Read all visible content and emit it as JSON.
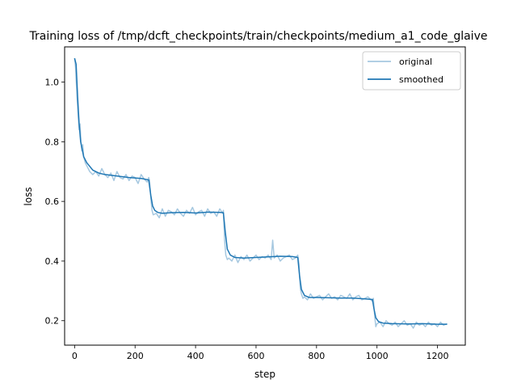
{
  "chart_data": {
    "type": "line",
    "title": "Training loss of /tmp/dcft_checkpoints/train/checkpoints/medium_a1_code_glaive",
    "xlabel": "step",
    "ylabel": "loss",
    "xlim": [
      -33,
      1292
    ],
    "ylim": [
      0.118,
      1.118
    ],
    "xticks": [
      0,
      200,
      400,
      600,
      800,
      1000,
      1200
    ],
    "xtick_labels": [
      "0",
      "200",
      "400",
      "600",
      "800",
      "1000",
      "1200"
    ],
    "yticks": [
      0.2,
      0.4,
      0.6,
      0.8,
      1.0
    ],
    "ytick_labels": [
      "0.2",
      "0.4",
      "0.6",
      "0.8",
      "1.0"
    ],
    "grid": false,
    "legend_position": "top-right",
    "colors": {
      "original": "#a6c8e0",
      "smoothed": "#1f77b4"
    },
    "series": [
      {
        "name": "original",
        "x": [
          0,
          3,
          6,
          9,
          12,
          15,
          18,
          21,
          24,
          27,
          30,
          35,
          40,
          45,
          50,
          60,
          70,
          80,
          90,
          100,
          110,
          120,
          130,
          140,
          150,
          160,
          170,
          180,
          190,
          200,
          210,
          220,
          230,
          240,
          245,
          248,
          252,
          256,
          260,
          270,
          280,
          290,
          300,
          310,
          320,
          330,
          340,
          350,
          360,
          370,
          380,
          390,
          400,
          410,
          420,
          430,
          440,
          450,
          460,
          470,
          480,
          490,
          492,
          496,
          500,
          505,
          510,
          520,
          530,
          540,
          550,
          560,
          570,
          580,
          590,
          600,
          610,
          620,
          630,
          640,
          650,
          655,
          660,
          670,
          680,
          690,
          700,
          710,
          720,
          730,
          738,
          742,
          746,
          750,
          755,
          760,
          770,
          780,
          790,
          800,
          810,
          820,
          830,
          840,
          850,
          860,
          870,
          880,
          890,
          900,
          910,
          920,
          930,
          940,
          950,
          960,
          970,
          980,
          985,
          988,
          992,
          996,
          1000,
          1010,
          1020,
          1030,
          1040,
          1050,
          1060,
          1070,
          1080,
          1090,
          1100,
          1110,
          1120,
          1130,
          1140,
          1150,
          1160,
          1170,
          1180,
          1190,
          1200,
          1210,
          1220,
          1232
        ],
        "y": [
          1.08,
          1.05,
          0.99,
          0.93,
          0.88,
          0.84,
          0.86,
          0.8,
          0.77,
          0.79,
          0.75,
          0.73,
          0.72,
          0.71,
          0.7,
          0.69,
          0.7,
          0.685,
          0.71,
          0.69,
          0.68,
          0.695,
          0.67,
          0.7,
          0.68,
          0.675,
          0.69,
          0.67,
          0.685,
          0.68,
          0.66,
          0.69,
          0.675,
          0.665,
          0.68,
          0.67,
          0.61,
          0.57,
          0.555,
          0.56,
          0.545,
          0.575,
          0.55,
          0.57,
          0.565,
          0.555,
          0.575,
          0.56,
          0.55,
          0.57,
          0.56,
          0.58,
          0.555,
          0.565,
          0.57,
          0.55,
          0.575,
          0.56,
          0.565,
          0.55,
          0.575,
          0.56,
          0.57,
          0.47,
          0.42,
          0.405,
          0.41,
          0.4,
          0.42,
          0.395,
          0.415,
          0.405,
          0.42,
          0.4,
          0.41,
          0.42,
          0.405,
          0.415,
          0.41,
          0.42,
          0.405,
          0.47,
          0.41,
          0.42,
          0.4,
          0.41,
          0.415,
          0.42,
          0.405,
          0.41,
          0.42,
          0.39,
          0.31,
          0.29,
          0.275,
          0.28,
          0.27,
          0.29,
          0.275,
          0.28,
          0.285,
          0.27,
          0.28,
          0.29,
          0.275,
          0.28,
          0.27,
          0.285,
          0.28,
          0.275,
          0.29,
          0.27,
          0.28,
          0.285,
          0.27,
          0.275,
          0.28,
          0.27,
          0.265,
          0.275,
          0.22,
          0.18,
          0.19,
          0.195,
          0.18,
          0.2,
          0.19,
          0.185,
          0.195,
          0.18,
          0.19,
          0.2,
          0.185,
          0.19,
          0.175,
          0.195,
          0.185,
          0.19,
          0.18,
          0.195,
          0.185,
          0.19,
          0.18,
          0.195,
          0.185,
          0.19
        ]
      },
      {
        "name": "smoothed",
        "x": [
          0,
          5,
          10,
          15,
          20,
          30,
          40,
          60,
          80,
          100,
          140,
          180,
          220,
          245,
          252,
          258,
          265,
          275,
          290,
          320,
          360,
          400,
          440,
          480,
          492,
          498,
          505,
          515,
          530,
          560,
          600,
          640,
          680,
          720,
          738,
          744,
          750,
          760,
          775,
          800,
          840,
          880,
          920,
          960,
          985,
          990,
          996,
          1005,
          1020,
          1050,
          1100,
          1150,
          1200,
          1232
        ],
        "y": [
          1.08,
          1.06,
          0.95,
          0.86,
          0.8,
          0.75,
          0.73,
          0.705,
          0.695,
          0.69,
          0.685,
          0.68,
          0.677,
          0.672,
          0.62,
          0.585,
          0.57,
          0.563,
          0.56,
          0.562,
          0.563,
          0.561,
          0.564,
          0.563,
          0.562,
          0.5,
          0.44,
          0.42,
          0.412,
          0.41,
          0.412,
          0.414,
          0.416,
          0.415,
          0.412,
          0.35,
          0.305,
          0.285,
          0.278,
          0.278,
          0.277,
          0.276,
          0.276,
          0.273,
          0.271,
          0.24,
          0.21,
          0.197,
          0.192,
          0.19,
          0.189,
          0.19,
          0.188,
          0.188
        ]
      }
    ]
  }
}
